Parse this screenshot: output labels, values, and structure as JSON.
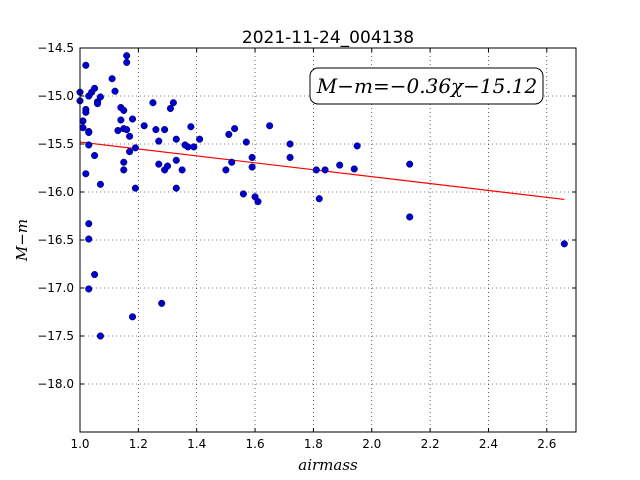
{
  "chart_data": {
    "type": "scatter",
    "title": "2021-11-24_004138",
    "xlabel": "airmass",
    "ylabel": "M−m",
    "xlim": [
      1.0,
      2.7
    ],
    "ylim": [
      -14.5,
      -18.5
    ],
    "y_inverted": true,
    "grid": true,
    "x_ticks": [
      "1.0",
      "1.2",
      "1.4",
      "1.6",
      "1.8",
      "2.0",
      "2.2",
      "2.4",
      "2.6"
    ],
    "y_ticks": [
      "−14.5",
      "−15.0",
      "−15.5",
      "−16.0",
      "−16.5",
      "−17.0",
      "−17.5",
      "−18.0"
    ],
    "annotation": "M−m=−0.36χ−15.12",
    "colors": {
      "points": "#0000cc",
      "fit_line": "#ff0000"
    },
    "fit": {
      "slope": -0.36,
      "intercept": -15.12,
      "x_range": [
        1.0,
        2.66
      ]
    },
    "points": [
      [
        1.0,
        -14.96
      ],
      [
        1.0,
        -15.05
      ],
      [
        1.01,
        -15.26
      ],
      [
        1.01,
        -15.33
      ],
      [
        1.02,
        -14.68
      ],
      [
        1.02,
        -15.14
      ],
      [
        1.02,
        -15.17
      ],
      [
        1.02,
        -15.81
      ],
      [
        1.03,
        -15.0
      ],
      [
        1.03,
        -15.37
      ],
      [
        1.03,
        -15.38
      ],
      [
        1.03,
        -15.51
      ],
      [
        1.03,
        -16.33
      ],
      [
        1.03,
        -16.49
      ],
      [
        1.03,
        -17.01
      ],
      [
        1.04,
        -14.96
      ],
      [
        1.05,
        -14.92
      ],
      [
        1.05,
        -15.62
      ],
      [
        1.05,
        -16.86
      ],
      [
        1.06,
        -15.06
      ],
      [
        1.06,
        -15.08
      ],
      [
        1.07,
        -15.01
      ],
      [
        1.07,
        -15.92
      ],
      [
        1.07,
        -17.5
      ],
      [
        1.11,
        -14.82
      ],
      [
        1.12,
        -14.95
      ],
      [
        1.13,
        -15.36
      ],
      [
        1.14,
        -15.12
      ],
      [
        1.14,
        -15.25
      ],
      [
        1.15,
        -15.15
      ],
      [
        1.15,
        -15.34
      ],
      [
        1.15,
        -15.69
      ],
      [
        1.15,
        -15.77
      ],
      [
        1.16,
        -14.58
      ],
      [
        1.16,
        -14.65
      ],
      [
        1.16,
        -15.35
      ],
      [
        1.17,
        -15.42
      ],
      [
        1.17,
        -15.58
      ],
      [
        1.18,
        -15.24
      ],
      [
        1.18,
        -17.3
      ],
      [
        1.19,
        -15.54
      ],
      [
        1.19,
        -15.96
      ],
      [
        1.22,
        -15.31
      ],
      [
        1.25,
        -15.07
      ],
      [
        1.26,
        -15.35
      ],
      [
        1.27,
        -15.47
      ],
      [
        1.27,
        -15.71
      ],
      [
        1.28,
        -17.16
      ],
      [
        1.29,
        -15.35
      ],
      [
        1.29,
        -15.77
      ],
      [
        1.3,
        -15.73
      ],
      [
        1.31,
        -15.13
      ],
      [
        1.32,
        -15.07
      ],
      [
        1.33,
        -15.45
      ],
      [
        1.33,
        -15.67
      ],
      [
        1.33,
        -15.96
      ],
      [
        1.35,
        -15.77
      ],
      [
        1.36,
        -15.51
      ],
      [
        1.37,
        -15.53
      ],
      [
        1.38,
        -15.32
      ],
      [
        1.39,
        -15.53
      ],
      [
        1.41,
        -15.45
      ],
      [
        1.5,
        -15.77
      ],
      [
        1.51,
        -15.4
      ],
      [
        1.52,
        -15.69
      ],
      [
        1.53,
        -15.34
      ],
      [
        1.56,
        -16.02
      ],
      [
        1.57,
        -15.48
      ],
      [
        1.59,
        -15.74
      ],
      [
        1.59,
        -15.64
      ],
      [
        1.6,
        -16.05
      ],
      [
        1.61,
        -16.1
      ],
      [
        1.65,
        -15.31
      ],
      [
        1.72,
        -15.5
      ],
      [
        1.72,
        -15.64
      ],
      [
        1.81,
        -15.77
      ],
      [
        1.82,
        -16.07
      ],
      [
        1.84,
        -15.77
      ],
      [
        1.89,
        -15.72
      ],
      [
        1.94,
        -15.76
      ],
      [
        1.95,
        -15.52
      ],
      [
        2.13,
        -15.71
      ],
      [
        2.13,
        -16.26
      ],
      [
        2.66,
        -16.54
      ]
    ]
  }
}
